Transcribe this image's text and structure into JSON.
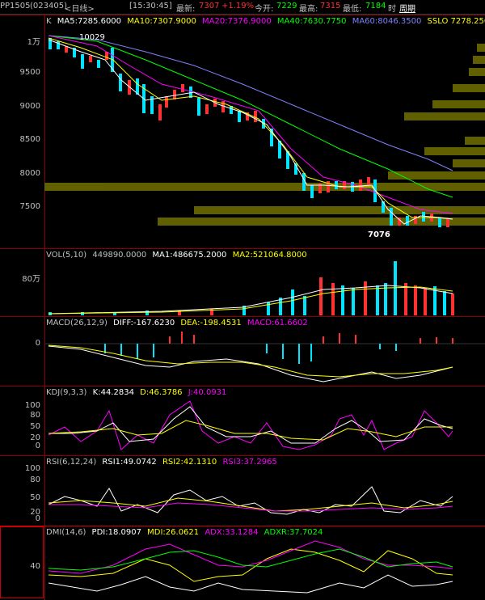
{
  "topbar": {
    "symbol": "PP1505",
    "code": "(023405)",
    "period": "<日线>",
    "time": "[15:30:45]",
    "latest_label": "最新:",
    "latest": "7307",
    "change": "+1.19%",
    "open_label": "今开:",
    "open": "7229",
    "high_label": "最高:",
    "high": "7315",
    "low_label": "最低:",
    "low": "7184",
    "period_buttons": [
      "时",
      "周期"
    ]
  },
  "main": {
    "indicator": "K",
    "ma5": "MA5:7285.6000",
    "ma10": "MA10:7307.9000",
    "ma20": "MA20:7376.9000",
    "ma40": "MA40:7630.7750",
    "ma60": "MA60:8046.3500",
    "sslo": "SSLO 7278.2500",
    "y_labels": [
      "1万",
      "9500",
      "9000",
      "8500",
      "8000",
      "7500"
    ],
    "high_mark": "10029",
    "low_mark": "7076"
  },
  "vol": {
    "title": "VOL(5,10)",
    "value": "449890.0000",
    "ma1": "MA1:486675.2000",
    "ma2": "MA2:521064.8000",
    "y_label": "80万"
  },
  "macd": {
    "title": "MACD(26,12,9)",
    "diff": "DIFF:-167.6230",
    "dea": "DEA:-198.4531",
    "macd": "MACD:61.6602",
    "y_label": "0"
  },
  "kdj": {
    "title": "KDJ(9,3,3)",
    "k": "K:44.2834",
    "d": "D:46.3786",
    "j": "J:40.0931",
    "y_labels": [
      "100",
      "80",
      "50",
      "20",
      "0"
    ]
  },
  "rsi": {
    "title": "RSI(6,12,24)",
    "rsi1": "RSI1:49.0742",
    "rsi2": "RSI2:42.1310",
    "rsi3": "RSI3:37.2965",
    "y_labels": [
      "100",
      "80",
      "50",
      "20",
      "0"
    ]
  },
  "dmi": {
    "title": "DMI(14,6)",
    "pdi": "PDI:18.0907",
    "mdi": "MDI:26.0621",
    "adx": "ADX:33.1284",
    "adxr": "ADXR:37.7024",
    "y_label": "40"
  },
  "colors": {
    "up": "#ff3232",
    "down": "#00e5ff",
    "ma5": "#ffffff",
    "ma10": "#ffff00",
    "ma20": "#ff00ff",
    "ma40": "#00ff00",
    "ma60": "#8080ff",
    "volume_profile": "#808000"
  }
}
